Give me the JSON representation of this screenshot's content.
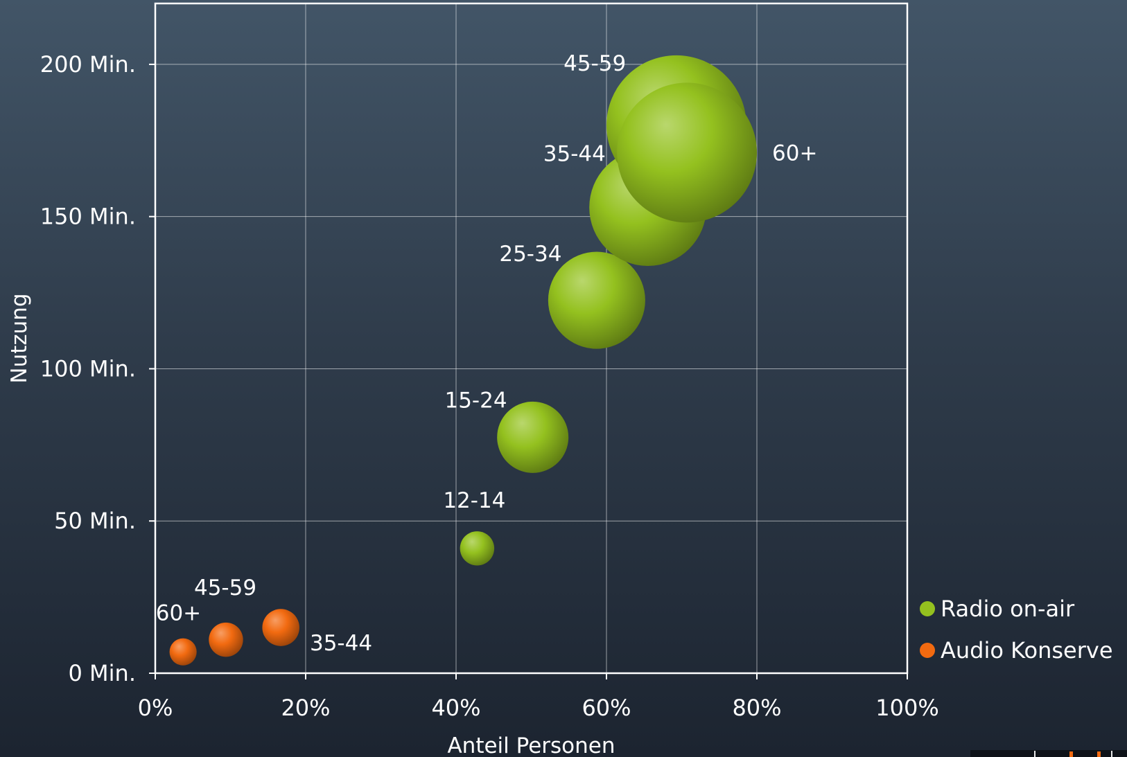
{
  "chart_data": {
    "type": "bubble",
    "xlabel": "Anteil Personen",
    "ylabel": "Nutzung",
    "xlim": [
      0,
      100
    ],
    "ylim": [
      0,
      220
    ],
    "x_ticks": [
      {
        "value": 0,
        "label": "0%"
      },
      {
        "value": 20,
        "label": "20%"
      },
      {
        "value": 40,
        "label": "40%"
      },
      {
        "value": 60,
        "label": "60%"
      },
      {
        "value": 80,
        "label": "80%"
      },
      {
        "value": 100,
        "label": "100%"
      }
    ],
    "y_ticks": [
      {
        "value": 0,
        "label": "0 Min."
      },
      {
        "value": 50,
        "label": "50 Min."
      },
      {
        "value": 100,
        "label": "100 Min."
      },
      {
        "value": 150,
        "label": "150 Min."
      },
      {
        "value": 200,
        "label": "200 Min."
      }
    ],
    "grid": true,
    "legend_position": "bottom-right",
    "size_unit": "relative bubble size",
    "series": [
      {
        "name": "Radio on-air",
        "color": "#94c11f",
        "points": [
          {
            "label": "12-14",
            "x": 42.8,
            "y": 41,
            "size": 24,
            "label_side": "above"
          },
          {
            "label": "15-24",
            "x": 50.2,
            "y": 77.5,
            "size": 50,
            "label_side": "upper-left"
          },
          {
            "label": "25-34",
            "x": 58.7,
            "y": 122.5,
            "size": 68,
            "label_side": "upper-left"
          },
          {
            "label": "35-44",
            "x": 65.5,
            "y": 153,
            "size": 82,
            "label_side": "upper-left"
          },
          {
            "label": "45-59",
            "x": 69.3,
            "y": 180,
            "size": 98,
            "label_side": "upper-left"
          },
          {
            "label": "60+",
            "x": 70.7,
            "y": 171,
            "size": 98,
            "label_side": "right"
          }
        ]
      },
      {
        "name": "Audio Konserve",
        "color": "#f26a10",
        "points": [
          {
            "label": "35-44",
            "x": 16.7,
            "y": 15,
            "size": 26,
            "label_side": "lower-right"
          },
          {
            "label": "45-59",
            "x": 9.4,
            "y": 11,
            "size": 24,
            "label_side": "upper-right"
          },
          {
            "label": "60+",
            "x": 3.7,
            "y": 7,
            "size": 19,
            "label_side": "upper-left"
          }
        ]
      }
    ]
  }
}
